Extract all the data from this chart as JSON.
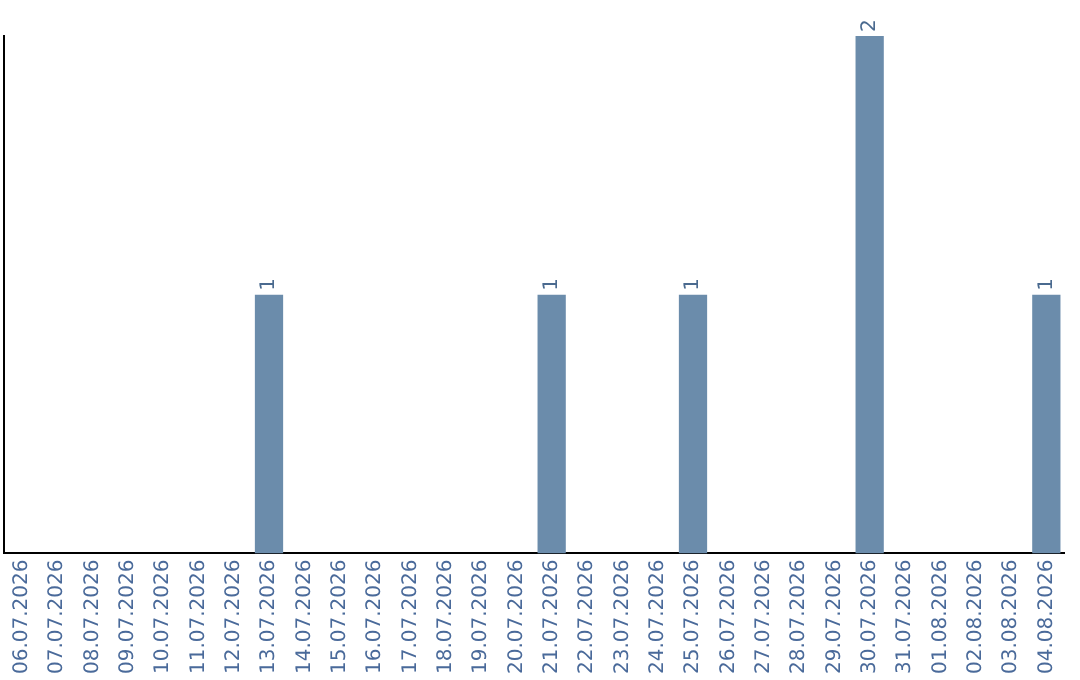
{
  "chart_data": {
    "type": "bar",
    "categories": [
      "06.07.2026",
      "07.07.2026",
      "08.07.2026",
      "09.07.2026",
      "10.07.2026",
      "11.07.2026",
      "12.07.2026",
      "13.07.2026",
      "14.07.2026",
      "15.07.2026",
      "16.07.2026",
      "17.07.2026",
      "18.07.2026",
      "19.07.2026",
      "20.07.2026",
      "21.07.2026",
      "22.07.2026",
      "23.07.2026",
      "24.07.2026",
      "25.07.2026",
      "26.07.2026",
      "27.07.2026",
      "28.07.2026",
      "29.07.2026",
      "30.07.2026",
      "31.07.2026",
      "01.08.2026",
      "02.08.2026",
      "03.08.2026",
      "04.08.2026"
    ],
    "values": [
      0,
      0,
      0,
      0,
      0,
      0,
      0,
      1,
      0,
      0,
      0,
      0,
      0,
      0,
      0,
      1,
      0,
      0,
      0,
      1,
      0,
      0,
      0,
      0,
      2,
      0,
      0,
      0,
      0,
      1
    ],
    "value_labels": [
      null,
      null,
      null,
      null,
      null,
      null,
      null,
      "1",
      null,
      null,
      null,
      null,
      null,
      null,
      null,
      "1",
      null,
      null,
      null,
      "1",
      null,
      null,
      null,
      null,
      "2",
      null,
      null,
      null,
      null,
      "1"
    ],
    "color": "#6b8cab",
    "grid": false,
    "legend": false,
    "tick_labels": "x"
  }
}
